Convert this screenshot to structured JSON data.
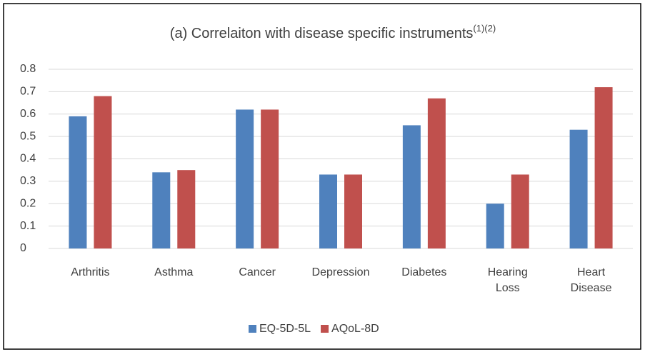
{
  "chart_data": {
    "type": "bar",
    "title": "(a) Correlaiton with disease specific instruments",
    "title_superscript": "(1)(2)",
    "categories": [
      "Arthritis",
      "Asthma",
      "Cancer",
      "Depression",
      "Diabetes",
      "Hearing Loss",
      "Heart Disease"
    ],
    "series": [
      {
        "name": "EQ-5D-5L",
        "color": "#4f81bd",
        "values": [
          0.59,
          0.34,
          0.62,
          0.33,
          0.55,
          0.2,
          0.53
        ]
      },
      {
        "name": "AQoL-8D",
        "color": "#c0504d",
        "values": [
          0.68,
          0.35,
          0.62,
          0.33,
          0.67,
          0.33,
          0.72
        ]
      }
    ],
    "ylim": [
      0,
      0.8
    ],
    "yticks": [
      0,
      0.1,
      0.2,
      0.3,
      0.4,
      0.5,
      0.6,
      0.7,
      0.8
    ],
    "grid": true,
    "legend": "bottom"
  }
}
